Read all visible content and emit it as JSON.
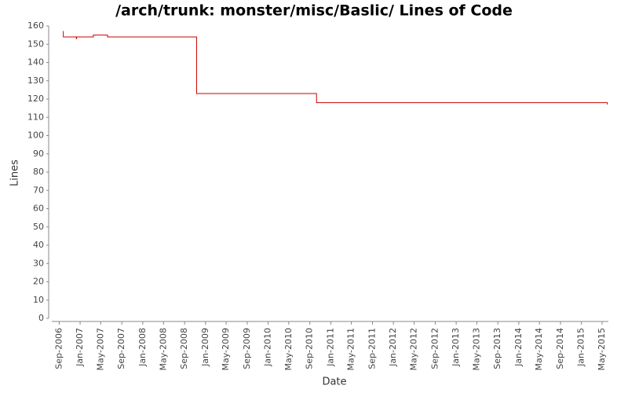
{
  "chart_data": {
    "type": "step-line",
    "title": "/arch/trunk: monster/misc/Baslic/ Lines of Code",
    "x_label": "Date",
    "y_label": "Lines",
    "series": [
      {
        "name": "Lines",
        "color": "#cc0000",
        "x": [
          "2006-09-23",
          "2006-09-25",
          "2006-12-10",
          "2006-12-12",
          "2007-03-19",
          "2007-06-10",
          "2008-11-10",
          "2010-10-10",
          "2015-06-01"
        ],
        "values": [
          157,
          154,
          153,
          154,
          155,
          154,
          123,
          118,
          117
        ]
      }
    ],
    "xlim": [
      "2006-07-20",
      "2015-06-07"
    ],
    "xticks": [
      {
        "value": "2006-09-01",
        "label": "Sep-2006"
      },
      {
        "value": "2007-01-01",
        "label": "Jan-2007"
      },
      {
        "value": "2007-05-01",
        "label": "May-2007"
      },
      {
        "value": "2007-09-01",
        "label": "Sep-2007"
      },
      {
        "value": "2008-01-01",
        "label": "Jan-2008"
      },
      {
        "value": "2008-05-01",
        "label": "May-2008"
      },
      {
        "value": "2008-09-01",
        "label": "Sep-2008"
      },
      {
        "value": "2009-01-01",
        "label": "Jan-2009"
      },
      {
        "value": "2009-05-01",
        "label": "May-2009"
      },
      {
        "value": "2009-09-01",
        "label": "Sep-2009"
      },
      {
        "value": "2010-01-01",
        "label": "Jan-2010"
      },
      {
        "value": "2010-05-01",
        "label": "May-2010"
      },
      {
        "value": "2010-09-01",
        "label": "Sep-2010"
      },
      {
        "value": "2011-01-01",
        "label": "Jan-2011"
      },
      {
        "value": "2011-05-01",
        "label": "May-2011"
      },
      {
        "value": "2011-09-01",
        "label": "Sep-2011"
      },
      {
        "value": "2012-01-01",
        "label": "Jan-2012"
      },
      {
        "value": "2012-05-01",
        "label": "May-2012"
      },
      {
        "value": "2012-09-01",
        "label": "Sep-2012"
      },
      {
        "value": "2013-01-01",
        "label": "Jan-2013"
      },
      {
        "value": "2013-05-01",
        "label": "May-2013"
      },
      {
        "value": "2013-09-01",
        "label": "Sep-2013"
      },
      {
        "value": "2014-01-01",
        "label": "Jan-2014"
      },
      {
        "value": "2014-05-01",
        "label": "May-2014"
      },
      {
        "value": "2014-09-01",
        "label": "Sep-2014"
      },
      {
        "value": "2015-01-01",
        "label": "Jan-2015"
      },
      {
        "value": "2015-05-01",
        "label": "May-2015"
      }
    ],
    "ylim": [
      0,
      160
    ],
    "yticks": [
      0,
      10,
      20,
      30,
      40,
      50,
      60,
      70,
      80,
      90,
      100,
      110,
      120,
      130,
      140,
      150,
      160
    ],
    "grid": false
  }
}
